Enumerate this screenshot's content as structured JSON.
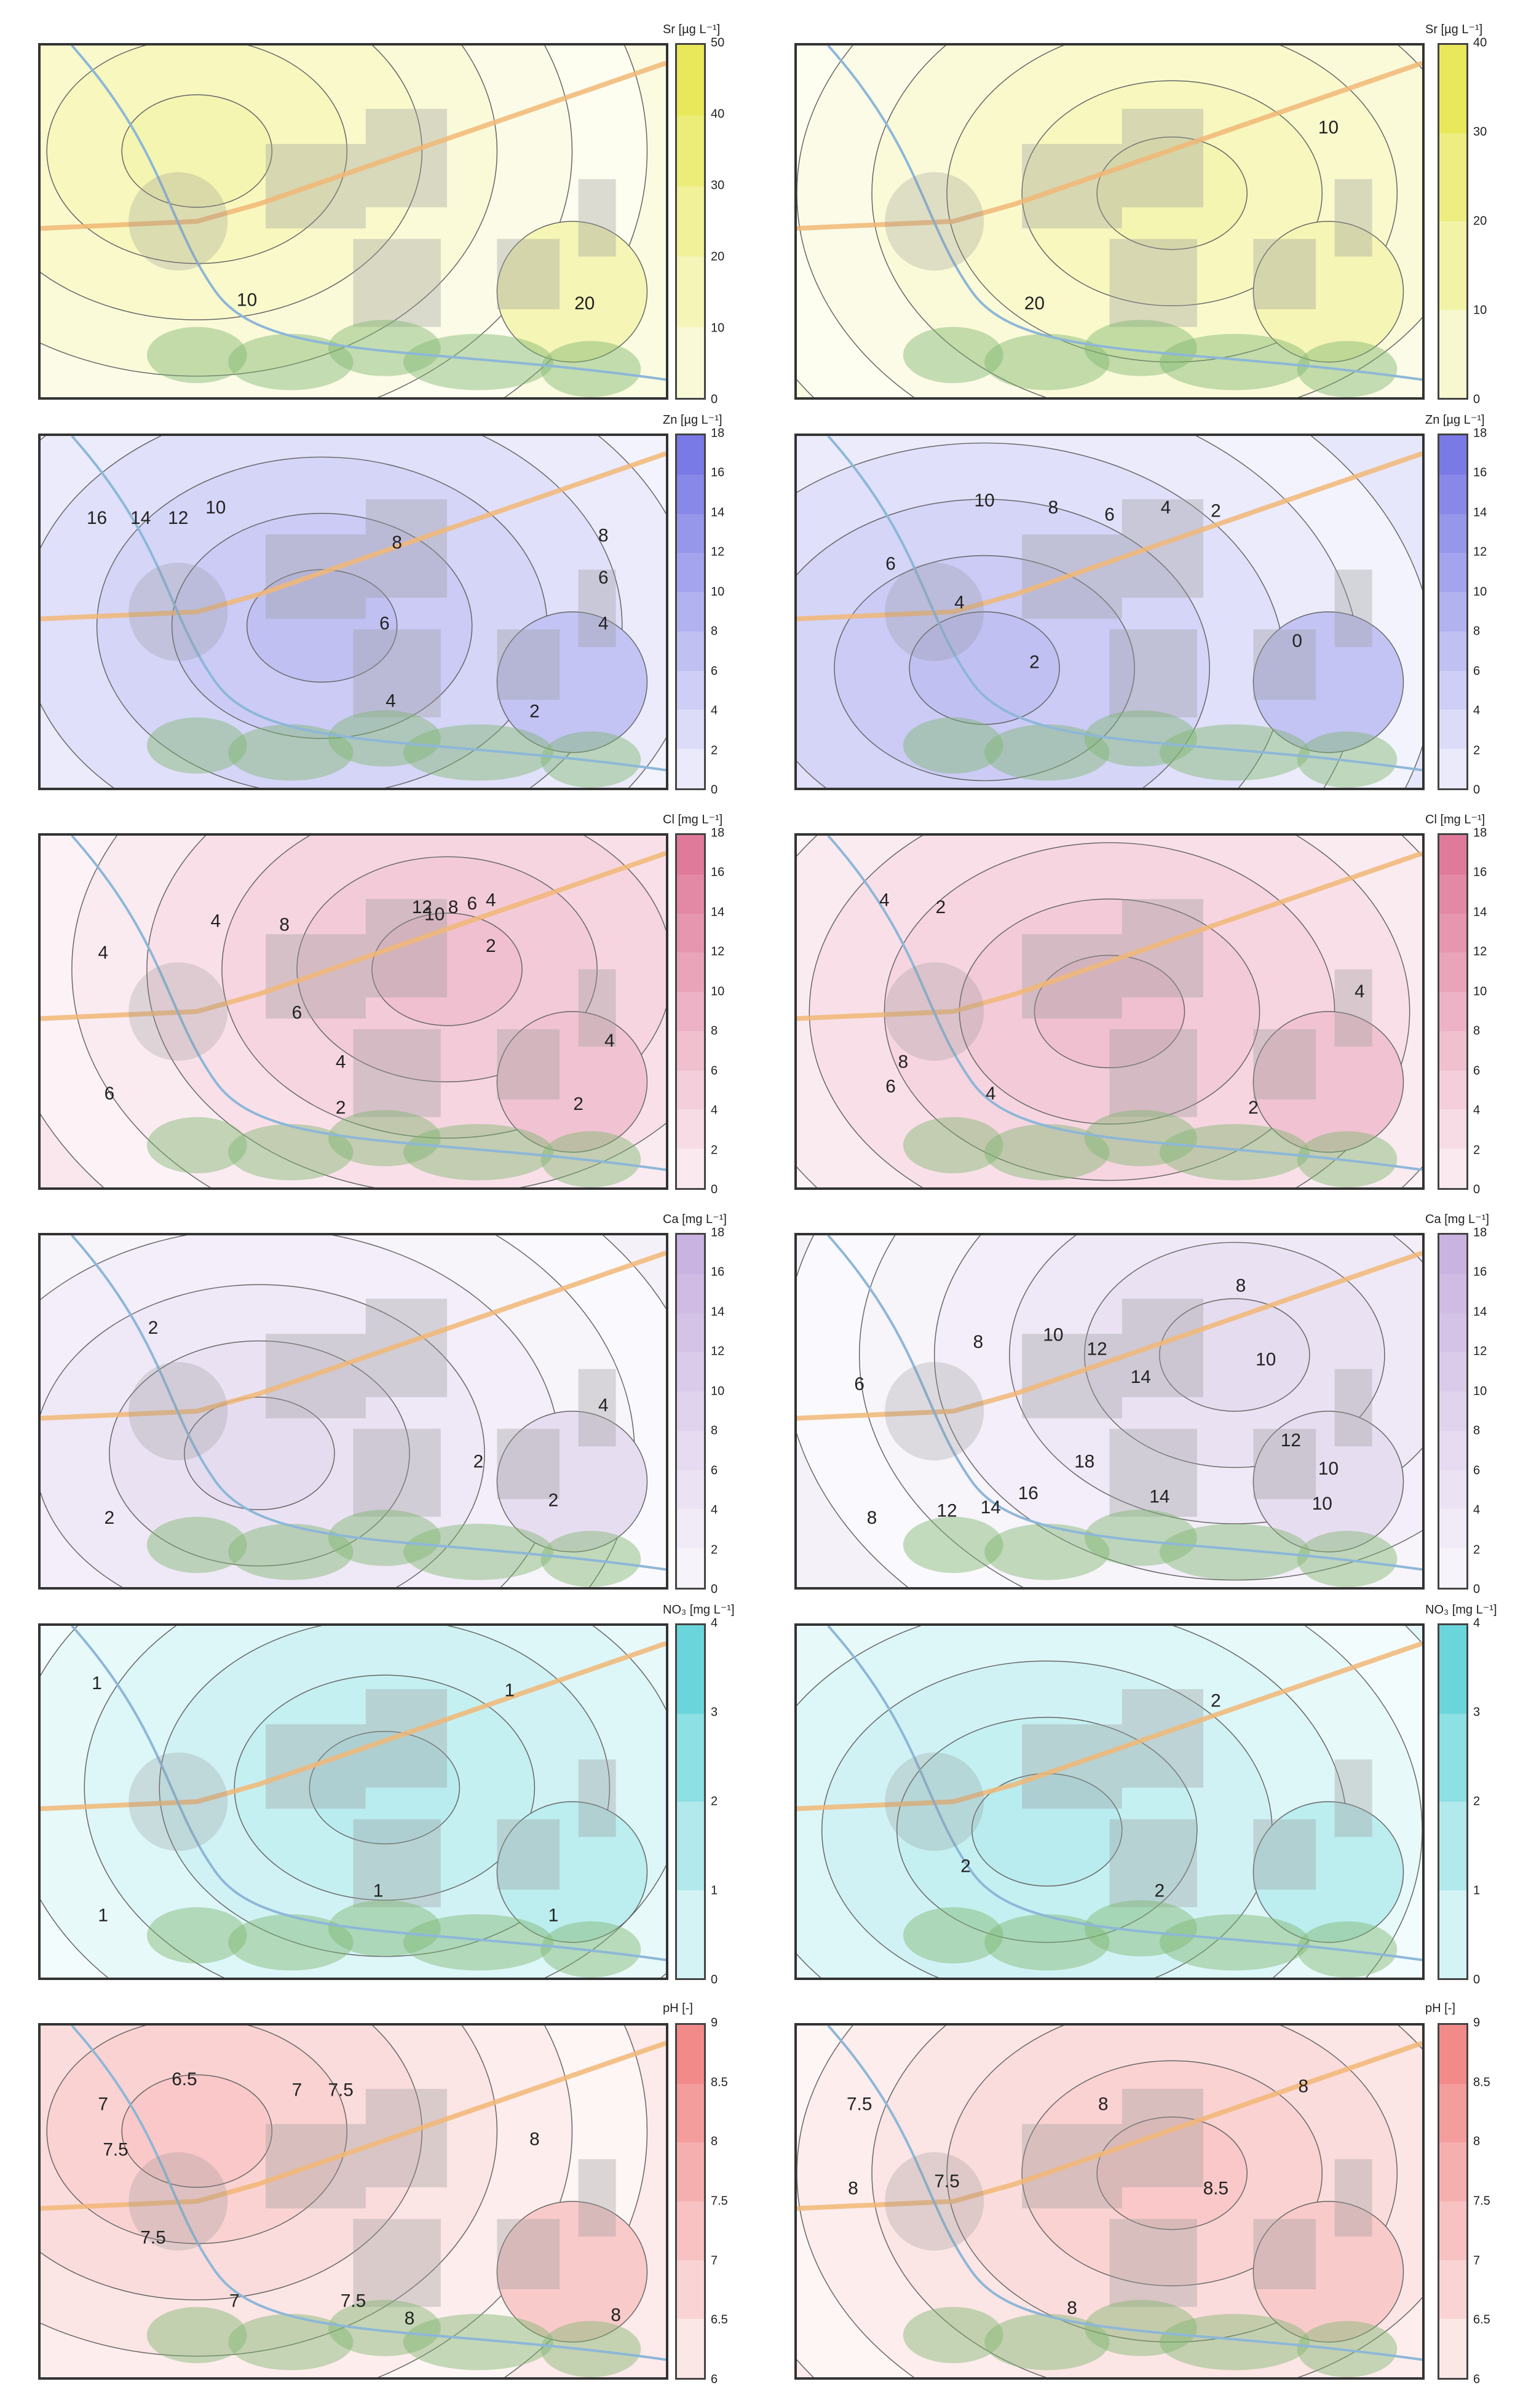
{
  "panels": [
    {
      "id": "sr-left",
      "title": "Sr [µg L⁻¹]",
      "color": "#e8e85a",
      "ticks": [
        "50",
        "40",
        "30",
        "20",
        "10",
        "0"
      ],
      "contour_labels": [
        "10",
        "20"
      ]
    },
    {
      "id": "sr-right",
      "title": "Sr [µg L⁻¹]",
      "color": "#e8e85a",
      "ticks": [
        "40",
        "30",
        "20",
        "10",
        "0"
      ],
      "contour_labels": [
        "10",
        "20"
      ]
    },
    {
      "id": "zn-left",
      "title": "Zn [µg L⁻¹]",
      "color": "#7a7ae6",
      "ticks": [
        "18",
        "16",
        "14",
        "12",
        "10",
        "8",
        "6",
        "4",
        "2",
        "0"
      ],
      "contour_labels": [
        "16",
        "14",
        "12",
        "10",
        "8",
        "8",
        "6",
        "6",
        "4",
        "4",
        "2"
      ]
    },
    {
      "id": "zn-right",
      "title": "Zn [µg L⁻¹]",
      "color": "#7a7ae6",
      "ticks": [
        "18",
        "16",
        "14",
        "12",
        "10",
        "8",
        "6",
        "4",
        "2",
        "0"
      ],
      "contour_labels": [
        "10",
        "8",
        "6",
        "4",
        "2",
        "6",
        "4",
        "2",
        "0"
      ]
    },
    {
      "id": "cl-left",
      "title": "Cl [mg L⁻¹]",
      "color": "#e07a9a",
      "ticks": [
        "18",
        "16",
        "14",
        "12",
        "10",
        "8",
        "6",
        "4",
        "2",
        "0"
      ],
      "contour_labels": [
        "4",
        "4",
        "8",
        "12",
        "10",
        "8",
        "6",
        "4",
        "2",
        "6",
        "4",
        "2",
        "6",
        "4",
        "2"
      ]
    },
    {
      "id": "cl-right",
      "title": "Cl [mg L⁻¹]",
      "color": "#e07a9a",
      "ticks": [
        "18",
        "16",
        "14",
        "12",
        "10",
        "8",
        "6",
        "4",
        "2",
        "0"
      ],
      "contour_labels": [
        "4",
        "2",
        "8",
        "6",
        "4",
        "4",
        "2"
      ]
    },
    {
      "id": "ca-left",
      "title": "Ca [mg L⁻¹]",
      "color": "#c9b3e0",
      "ticks": [
        "18",
        "16",
        "14",
        "12",
        "10",
        "8",
        "6",
        "4",
        "2",
        "0"
      ],
      "contour_labels": [
        "2",
        "2",
        "2",
        "4",
        "2"
      ]
    },
    {
      "id": "ca-right",
      "title": "Ca [mg L⁻¹]",
      "color": "#c9b3e0",
      "ticks": [
        "18",
        "16",
        "14",
        "12",
        "10",
        "8",
        "6",
        "4",
        "2",
        "0"
      ],
      "contour_labels": [
        "6",
        "8",
        "10",
        "12",
        "14",
        "10",
        "8",
        "18",
        "16",
        "14",
        "12",
        "10",
        "14",
        "12",
        "10",
        "8"
      ]
    },
    {
      "id": "no3-left",
      "title": "NO₃ [mg L⁻¹]",
      "color": "#6ad6dc",
      "ticks": [
        "4",
        "3",
        "2",
        "1",
        "0"
      ],
      "contour_labels": [
        "1",
        "1",
        "1",
        "1",
        "1"
      ]
    },
    {
      "id": "no3-right",
      "title": "NO₃ [mg L⁻¹]",
      "color": "#6ad6dc",
      "ticks": [
        "4",
        "3",
        "2",
        "1",
        "0"
      ],
      "contour_labels": [
        "2",
        "2",
        "2"
      ]
    },
    {
      "id": "ph-left",
      "title": "pH [-]",
      "color": "#f28a8a",
      "ticks": [
        "9",
        "8.5",
        "8",
        "7.5",
        "7",
        "6.5",
        "6"
      ],
      "contour_labels": [
        "6.5",
        "7",
        "7",
        "7.5",
        "7.5",
        "8",
        "7.5",
        "7",
        "7.5",
        "8",
        "8"
      ]
    },
    {
      "id": "ph-right",
      "title": "pH [-]",
      "color": "#f28a8a",
      "ticks": [
        "9",
        "8.5",
        "8",
        "7.5",
        "7",
        "6.5",
        "6"
      ],
      "contour_labels": [
        "7.5",
        "8",
        "7.5",
        "8",
        "8",
        "8.5",
        "8"
      ]
    }
  ]
}
